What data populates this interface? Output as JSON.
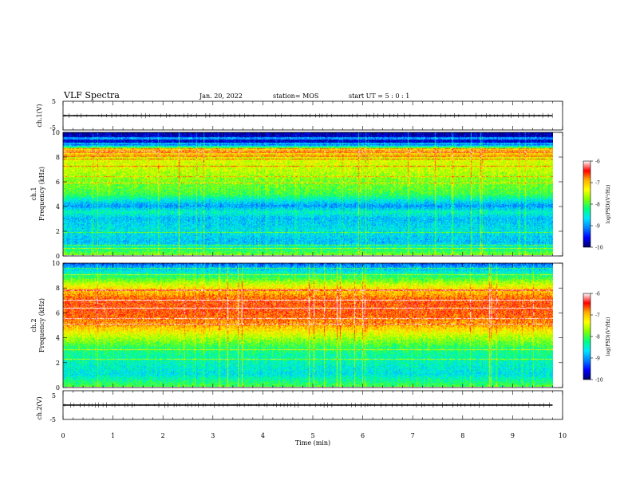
{
  "header": {
    "title": "VLF Spectra",
    "date": "Jan. 20, 2022",
    "station": "station= MOS",
    "start": "start UT =  5 : 0 : 1"
  },
  "colors": {
    "scale": [
      "#000066",
      "#0000ff",
      "#0080ff",
      "#00e5ff",
      "#00ff80",
      "#80ff00",
      "#ffff00",
      "#ffb000",
      "#ff0000",
      "#ffffff"
    ]
  },
  "chart_data": [
    {
      "type": "line",
      "ylabel": "ch.1(V)",
      "ylim": [
        -5,
        5
      ],
      "yticks": [
        "5",
        "-5"
      ],
      "xlim": [
        0,
        10
      ],
      "trace_level": 0
    },
    {
      "type": "heatmap",
      "ylabel": "ch.1 Frequency (kHz)",
      "ylabel_top": "ch.1",
      "ylabel_bottom": "Frequency (kHz)",
      "xlim": [
        0,
        9.8
      ],
      "ylim": [
        0,
        10
      ],
      "yticks": [
        "0",
        "2",
        "4",
        "6",
        "8",
        "10"
      ],
      "colorbar": {
        "label": "log(PSD)(V²/Hz)",
        "ticks": [
          "-6",
          "-7",
          "-8",
          "-9",
          "-10"
        ],
        "range": [
          -10,
          -6
        ]
      },
      "profile_kHz": [
        0,
        1,
        2,
        3,
        3.5,
        4,
        5,
        6,
        7,
        8,
        8.6,
        9.1,
        10
      ],
      "profile_level": [
        0.55,
        0.3,
        0.35,
        0.3,
        0.4,
        0.25,
        0.5,
        0.55,
        0.62,
        0.65,
        0.75,
        0.1,
        0.05
      ]
    },
    {
      "type": "heatmap",
      "ylabel": "ch.2 Frequency (kHz)",
      "ylabel_top": "ch.2",
      "ylabel_bottom": "Frequency (kHz)",
      "xlim": [
        0,
        9.8
      ],
      "ylim": [
        0,
        10
      ],
      "yticks": [
        "0",
        "2",
        "4",
        "6",
        "8",
        "10"
      ],
      "colorbar": {
        "label": "log(PSD)(V²/Hz)",
        "ticks": [
          "-6",
          "-7",
          "-8",
          "-9",
          "-10"
        ],
        "range": [
          -10,
          -6
        ]
      },
      "profile_kHz": [
        0,
        1,
        2,
        3,
        4,
        5,
        6,
        7,
        8,
        9,
        10
      ],
      "profile_level": [
        0.5,
        0.35,
        0.4,
        0.45,
        0.6,
        0.78,
        0.85,
        0.85,
        0.7,
        0.45,
        0.2
      ]
    },
    {
      "type": "line",
      "ylabel": "ch.2(V)",
      "ylim": [
        -5,
        5
      ],
      "yticks": [
        "5",
        "-5"
      ],
      "xlim": [
        0,
        10
      ],
      "trace_level": 0
    }
  ],
  "xaxis": {
    "label": "Time (min)",
    "ticks": [
      "0",
      "1",
      "2",
      "3",
      "4",
      "5",
      "6",
      "7",
      "8",
      "9",
      "10"
    ]
  }
}
